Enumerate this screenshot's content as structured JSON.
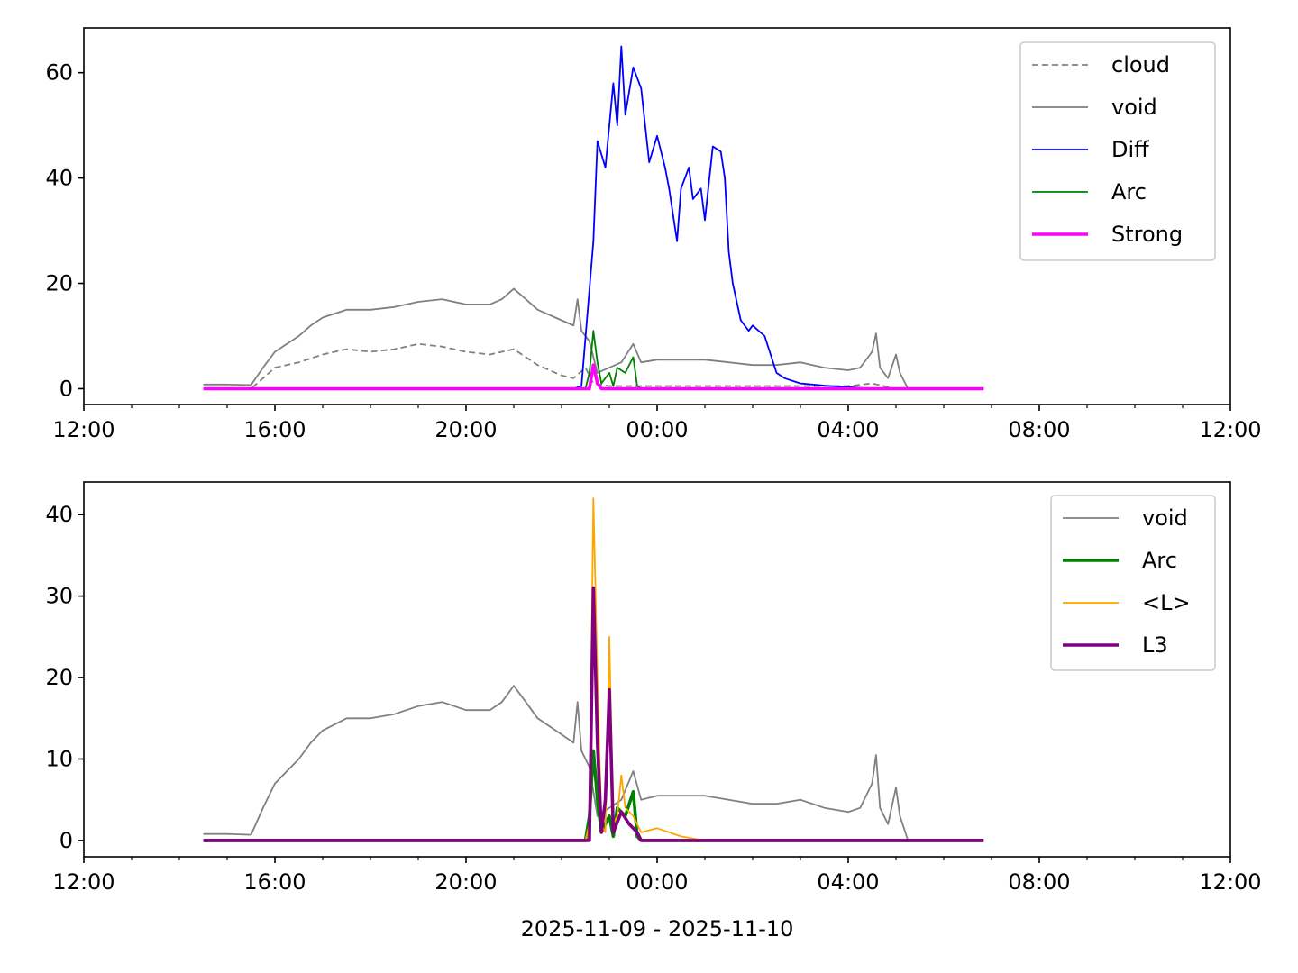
{
  "chart_data": [
    {
      "type": "line",
      "title": "",
      "xlabel": "",
      "ylabel": "",
      "xlim": [
        "2025-11-09 12:00",
        "2025-11-10 12:00"
      ],
      "ylim": [
        -3,
        68.5
      ],
      "x_ticks": [
        "12:00",
        "16:00",
        "20:00",
        "00:00",
        "04:00",
        "08:00",
        "12:00"
      ],
      "y_ticks": [
        "0",
        "20",
        "40",
        "60"
      ],
      "y_tick_values": [
        0,
        20,
        40,
        60
      ],
      "legend_placement": "top-right",
      "grid": false,
      "series": [
        {
          "name": "cloud",
          "color": "#808080",
          "style": "dashed",
          "points": [
            [
              "14:30",
              0
            ],
            [
              "15:30",
              0
            ],
            [
              "15:45",
              2
            ],
            [
              "16:00",
              4
            ],
            [
              "16:30",
              5
            ],
            [
              "17:00",
              6.5
            ],
            [
              "17:30",
              7.5
            ],
            [
              "18:00",
              7
            ],
            [
              "18:30",
              7.5
            ],
            [
              "19:00",
              8.5
            ],
            [
              "19:30",
              8
            ],
            [
              "20:00",
              7
            ],
            [
              "20:30",
              6.5
            ],
            [
              "21:00",
              7.5
            ],
            [
              "21:30",
              4.5
            ],
            [
              "22:00",
              2.5
            ],
            [
              "22:15",
              2
            ],
            [
              "22:30",
              4
            ],
            [
              "22:40",
              1
            ],
            [
              "23:00",
              0.5
            ],
            [
              "00:00",
              0.5
            ],
            [
              "02:00",
              0.5
            ],
            [
              "04:00",
              0.5
            ],
            [
              "04:30",
              1
            ],
            [
              "05:00",
              0
            ],
            [
              "06:50",
              0
            ]
          ]
        },
        {
          "name": "void",
          "color": "#808080",
          "style": "solid",
          "points": [
            [
              "14:30",
              0.8
            ],
            [
              "15:00",
              0.8
            ],
            [
              "15:30",
              0.7
            ],
            [
              "15:45",
              4
            ],
            [
              "16:00",
              7
            ],
            [
              "16:30",
              10
            ],
            [
              "16:45",
              12
            ],
            [
              "17:00",
              13.5
            ],
            [
              "17:30",
              15
            ],
            [
              "18:00",
              15
            ],
            [
              "18:30",
              15.5
            ],
            [
              "19:00",
              16.5
            ],
            [
              "19:30",
              17
            ],
            [
              "20:00",
              16
            ],
            [
              "20:30",
              16
            ],
            [
              "20:45",
              17
            ],
            [
              "21:00",
              19
            ],
            [
              "21:15",
              17
            ],
            [
              "21:30",
              15
            ],
            [
              "22:00",
              13
            ],
            [
              "22:15",
              12
            ],
            [
              "22:20",
              17
            ],
            [
              "22:25",
              11
            ],
            [
              "22:35",
              9
            ],
            [
              "22:45",
              3
            ],
            [
              "23:00",
              4
            ],
            [
              "23:15",
              5
            ],
            [
              "23:30",
              8.5
            ],
            [
              "23:40",
              5
            ],
            [
              "00:00",
              5.5
            ],
            [
              "00:30",
              5.5
            ],
            [
              "01:00",
              5.5
            ],
            [
              "01:30",
              5
            ],
            [
              "02:00",
              4.5
            ],
            [
              "02:30",
              4.5
            ],
            [
              "03:00",
              5
            ],
            [
              "03:15",
              4.5
            ],
            [
              "03:30",
              4
            ],
            [
              "04:00",
              3.5
            ],
            [
              "04:15",
              4
            ],
            [
              "04:30",
              7
            ],
            [
              "04:35",
              10.5
            ],
            [
              "04:40",
              4
            ],
            [
              "04:50",
              2
            ],
            [
              "05:00",
              6.5
            ],
            [
              "05:05",
              3
            ],
            [
              "05:15",
              0
            ],
            [
              "06:50",
              0
            ]
          ]
        },
        {
          "name": "Diff",
          "color": "#0000ff",
          "style": "solid",
          "points": [
            [
              "14:30",
              0
            ],
            [
              "22:15",
              0
            ],
            [
              "22:25",
              0.5
            ],
            [
              "22:40",
              28
            ],
            [
              "22:45",
              47
            ],
            [
              "22:55",
              42
            ],
            [
              "23:05",
              58
            ],
            [
              "23:10",
              50
            ],
            [
              "23:15",
              65
            ],
            [
              "23:20",
              52
            ],
            [
              "23:30",
              61
            ],
            [
              "23:40",
              57
            ],
            [
              "23:50",
              43
            ],
            [
              "00:00",
              48
            ],
            [
              "00:10",
              42
            ],
            [
              "00:15",
              38
            ],
            [
              "00:25",
              28
            ],
            [
              "00:30",
              38
            ],
            [
              "00:40",
              42
            ],
            [
              "00:45",
              36
            ],
            [
              "00:55",
              38
            ],
            [
              "01:00",
              32
            ],
            [
              "01:10",
              46
            ],
            [
              "01:20",
              45
            ],
            [
              "01:25",
              40
            ],
            [
              "01:30",
              26
            ],
            [
              "01:35",
              20
            ],
            [
              "01:45",
              13
            ],
            [
              "01:55",
              11
            ],
            [
              "02:00",
              12
            ],
            [
              "02:15",
              10
            ],
            [
              "02:30",
              3
            ],
            [
              "02:40",
              2
            ],
            [
              "03:00",
              1
            ],
            [
              "03:30",
              0.6
            ],
            [
              "04:00",
              0.3
            ],
            [
              "04:30",
              0
            ],
            [
              "06:50",
              0
            ]
          ]
        },
        {
          "name": "Arc",
          "color": "#008000",
          "style": "solid",
          "points": [
            [
              "14:30",
              0
            ],
            [
              "22:30",
              0
            ],
            [
              "22:35",
              3
            ],
            [
              "22:40",
              11
            ],
            [
              "22:45",
              5
            ],
            [
              "22:50",
              1
            ],
            [
              "23:00",
              3
            ],
            [
              "23:05",
              0.5
            ],
            [
              "23:10",
              4
            ],
            [
              "23:20",
              3
            ],
            [
              "23:30",
              6
            ],
            [
              "23:35",
              0.5
            ],
            [
              "23:40",
              0
            ],
            [
              "06:50",
              0
            ]
          ]
        },
        {
          "name": "Strong",
          "color": "#ff00ff",
          "style": "solid-thick",
          "points": [
            [
              "14:30",
              0
            ],
            [
              "22:35",
              0
            ],
            [
              "22:40",
              4.5
            ],
            [
              "22:45",
              1
            ],
            [
              "22:50",
              0
            ],
            [
              "06:50",
              0
            ]
          ]
        }
      ]
    },
    {
      "type": "line",
      "title": "",
      "xlabel": "2025-11-09 - 2025-11-10",
      "ylabel": "",
      "xlim": [
        "2025-11-09 12:00",
        "2025-11-10 12:00"
      ],
      "ylim": [
        -2,
        44
      ],
      "x_ticks": [
        "12:00",
        "16:00",
        "20:00",
        "00:00",
        "04:00",
        "08:00",
        "12:00"
      ],
      "y_ticks": [
        "0",
        "10",
        "20",
        "30",
        "40"
      ],
      "y_tick_values": [
        0,
        10,
        20,
        30,
        40
      ],
      "legend_placement": "top-right",
      "grid": false,
      "series": [
        {
          "name": "void",
          "color": "#808080",
          "style": "solid",
          "points": [
            [
              "14:30",
              0.8
            ],
            [
              "15:00",
              0.8
            ],
            [
              "15:30",
              0.7
            ],
            [
              "15:45",
              4
            ],
            [
              "16:00",
              7
            ],
            [
              "16:30",
              10
            ],
            [
              "16:45",
              12
            ],
            [
              "17:00",
              13.5
            ],
            [
              "17:30",
              15
            ],
            [
              "18:00",
              15
            ],
            [
              "18:30",
              15.5
            ],
            [
              "19:00",
              16.5
            ],
            [
              "19:30",
              17
            ],
            [
              "20:00",
              16
            ],
            [
              "20:30",
              16
            ],
            [
              "20:45",
              17
            ],
            [
              "21:00",
              19
            ],
            [
              "21:15",
              17
            ],
            [
              "21:30",
              15
            ],
            [
              "22:00",
              13
            ],
            [
              "22:15",
              12
            ],
            [
              "22:20",
              17
            ],
            [
              "22:25",
              11
            ],
            [
              "22:35",
              9
            ],
            [
              "22:45",
              3
            ],
            [
              "23:00",
              4
            ],
            [
              "23:15",
              5
            ],
            [
              "23:30",
              8.5
            ],
            [
              "23:40",
              5
            ],
            [
              "00:00",
              5.5
            ],
            [
              "00:30",
              5.5
            ],
            [
              "01:00",
              5.5
            ],
            [
              "01:30",
              5
            ],
            [
              "02:00",
              4.5
            ],
            [
              "02:30",
              4.5
            ],
            [
              "03:00",
              5
            ],
            [
              "03:15",
              4.5
            ],
            [
              "03:30",
              4
            ],
            [
              "04:00",
              3.5
            ],
            [
              "04:15",
              4
            ],
            [
              "04:30",
              7
            ],
            [
              "04:35",
              10.5
            ],
            [
              "04:40",
              4
            ],
            [
              "04:50",
              2
            ],
            [
              "05:00",
              6.5
            ],
            [
              "05:05",
              3
            ],
            [
              "05:15",
              0
            ],
            [
              "06:50",
              0
            ]
          ]
        },
        {
          "name": "Arc",
          "color": "#008000",
          "style": "solid-thick",
          "points": [
            [
              "14:30",
              0
            ],
            [
              "22:30",
              0
            ],
            [
              "22:35",
              3
            ],
            [
              "22:40",
              11
            ],
            [
              "22:45",
              5
            ],
            [
              "22:50",
              1
            ],
            [
              "23:00",
              3
            ],
            [
              "23:05",
              0.5
            ],
            [
              "23:10",
              4
            ],
            [
              "23:20",
              3
            ],
            [
              "23:30",
              6
            ],
            [
              "23:35",
              0.5
            ],
            [
              "23:40",
              0
            ],
            [
              "06:50",
              0
            ]
          ]
        },
        {
          "name": "<L>",
          "color": "#ffa500",
          "style": "solid",
          "points": [
            [
              "14:30",
              0
            ],
            [
              "22:30",
              0
            ],
            [
              "22:35",
              2
            ],
            [
              "22:40",
              42
            ],
            [
              "22:45",
              20
            ],
            [
              "22:50",
              2
            ],
            [
              "22:55",
              1
            ],
            [
              "23:00",
              25
            ],
            [
              "23:05",
              2
            ],
            [
              "23:10",
              3
            ],
            [
              "23:15",
              8
            ],
            [
              "23:20",
              4
            ],
            [
              "23:30",
              3
            ],
            [
              "23:40",
              1
            ],
            [
              "00:00",
              1.5
            ],
            [
              "00:30",
              0.5
            ],
            [
              "01:00",
              0
            ],
            [
              "06:50",
              0
            ]
          ]
        },
        {
          "name": "L3",
          "color": "#800080",
          "style": "solid-thick",
          "points": [
            [
              "14:30",
              0
            ],
            [
              "22:35",
              0
            ],
            [
              "22:40",
              31
            ],
            [
              "22:45",
              12
            ],
            [
              "22:50",
              1
            ],
            [
              "22:55",
              5
            ],
            [
              "23:00",
              18.5
            ],
            [
              "23:05",
              1
            ],
            [
              "23:15",
              3.5
            ],
            [
              "23:25",
              2
            ],
            [
              "23:35",
              1
            ],
            [
              "23:40",
              0
            ],
            [
              "06:50",
              0
            ]
          ]
        }
      ]
    }
  ]
}
